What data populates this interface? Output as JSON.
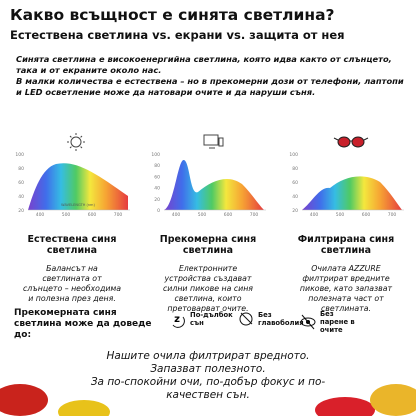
{
  "header": {
    "title": "Какво всъщност е синята светлина?",
    "subtitle": "Естествена светлина vs. екрани vs. защита от нея"
  },
  "intro": [
    "Синята светлина е високоенергийна светлина, която идва както от слънцето, така и от екраните около нас.",
    "В малки количества е естествена – но в прекомерни дози от телефони, лаптопи и LED осветление може да натовари очите и да наруши съня."
  ],
  "panels": [
    {
      "chart": {
        "yticks": [
          "100",
          "80",
          "60",
          "40",
          "20"
        ],
        "xticks": [
          "400",
          "500",
          "600",
          "700"
        ],
        "xlabel": "WAVELENGTH (nm)"
      },
      "title": "Естествена синя светлина",
      "text": "Балансът на светлината от слънцето – необходима и полезна през деня."
    },
    {
      "chart": {
        "yticks": [
          "100",
          "80",
          "60",
          "40",
          "20",
          "0"
        ],
        "xticks": [
          "400",
          "500",
          "600",
          "700"
        ]
      },
      "title": "Прекомерна синя светлина",
      "text": "Електронните устройства създават силни пикове на синя светлина, които претоварват очите."
    },
    {
      "chart": {
        "yticks": [
          "100",
          "80",
          "60",
          "40",
          "20"
        ],
        "xticks": [
          "400",
          "500",
          "600",
          "700"
        ]
      },
      "title": "Филтрирана синя светлина",
      "text": "Очилата AZZURE филтрират вредните пикове, като запазват полезната част от светлината."
    }
  ],
  "effects": {
    "heading": "Прекомерната синя светлина може да доведе до:",
    "items": [
      "По-дълбок сън",
      "Без главоболия",
      "Без парене в очите"
    ]
  },
  "closing": [
    "Нашите очила филтрират вредното. Запазват полезното.",
    "За по-спокойни очи, по-добър фокус и по-качествен сън."
  ]
}
